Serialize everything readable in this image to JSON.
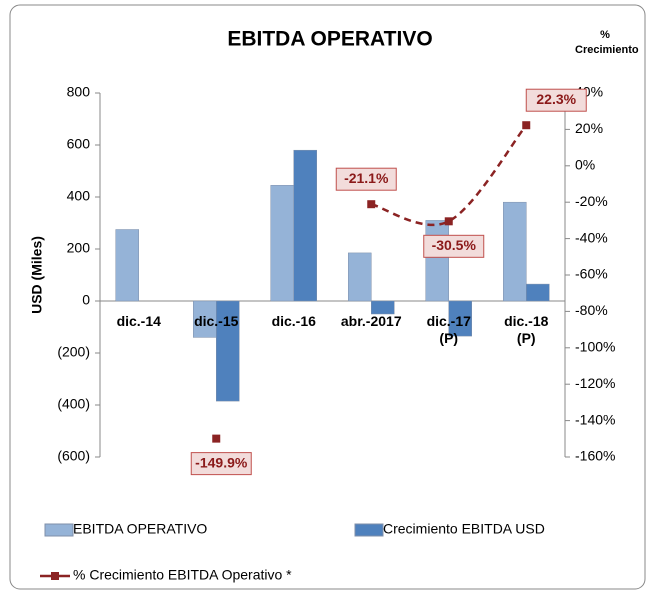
{
  "chart_data": {
    "type": "bar",
    "title": "EBITDA OPERATIVO",
    "y_label": "USD (Miles)",
    "y2_label": "%\nCrecimiento",
    "categories": [
      "dic.-14",
      "dic.-15",
      "dic.-16",
      "abr.-2017",
      "dic.-17\n(P)",
      "dic.-18\n(P)"
    ],
    "series": [
      {
        "name": "EBITDA OPERATIVO",
        "color": "#95b3d7",
        "type": "bar",
        "values": [
          275,
          -140,
          445,
          185,
          310,
          380
        ]
      },
      {
        "name": "Crecimiento EBITDA USD",
        "color": "#4f81bd",
        "type": "bar",
        "values": [
          null,
          -385,
          580,
          -50,
          -135,
          65
        ]
      },
      {
        "name": "% Crecimiento EBITDA Operativo *",
        "color": "#8b2323",
        "type": "line",
        "axis": "y2",
        "dashed": true,
        "values": [
          null,
          -149.9,
          null,
          -21.1,
          -30.5,
          22.3
        ],
        "value_labels": [
          null,
          "-149.9%",
          null,
          "-21.1%",
          "-30.5%",
          "22.3%"
        ]
      }
    ],
    "ylim": [
      -600,
      800
    ],
    "yticks": [
      {
        "value": -600,
        "label": "(600)"
      },
      {
        "value": -400,
        "label": "(400)"
      },
      {
        "value": -200,
        "label": "(200)"
      },
      0,
      200,
      400,
      600,
      800
    ],
    "y2lim": [
      -160,
      40
    ],
    "y2ticks": [
      {
        "value": -160,
        "label": "-160%"
      },
      {
        "value": -140,
        "label": "-140%"
      },
      {
        "value": -120,
        "label": "-120%"
      },
      {
        "value": -100,
        "label": "-100%"
      },
      {
        "value": -80,
        "label": "-80%"
      },
      {
        "value": -60,
        "label": "-60%"
      },
      {
        "value": -40,
        "label": "-40%"
      },
      {
        "value": -20,
        "label": "-20%"
      },
      {
        "value": 0,
        "label": "0%"
      },
      {
        "value": 20,
        "label": "20%"
      },
      {
        "value": 40,
        "label": "40%"
      }
    ],
    "grid": false
  }
}
